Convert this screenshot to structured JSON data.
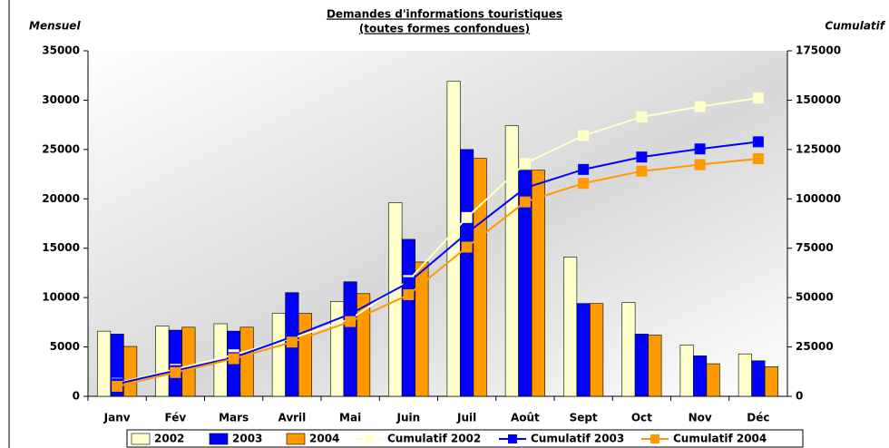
{
  "chart_data": {
    "type": "bar",
    "title": "Demandes d'informations touristiques",
    "subtitle": "(toutes formes confondues)",
    "y_label": "Mensuel",
    "y2_label": "Cumulatif",
    "categories": [
      "Janv",
      "Fév",
      "Mars",
      "Avril",
      "Mai",
      "Juin",
      "Juil",
      "Août",
      "Sept",
      "Oct",
      "Nov",
      "Déc"
    ],
    "series": [
      {
        "name": "2002",
        "type": "bar",
        "color": "#ffffcc",
        "values": [
          6600,
          7100,
          7350,
          8400,
          9600,
          19600,
          31900,
          27400,
          14100,
          9500,
          5200,
          4300
        ]
      },
      {
        "name": "2003",
        "type": "bar",
        "color": "#0000ff",
        "values": [
          6300,
          6700,
          6600,
          10500,
          11600,
          15900,
          25000,
          22900,
          9400,
          6300,
          4100,
          3600
        ]
      },
      {
        "name": "2004",
        "type": "bar",
        "color": "#ff9900",
        "values": [
          5050,
          7000,
          7000,
          8400,
          10400,
          13600,
          24100,
          22900,
          9400,
          6200,
          3300,
          3000
        ]
      },
      {
        "name": "Cumulatif 2002",
        "type": "line",
        "axis": "y2",
        "color": "#ffffcc",
        "values": [
          6600,
          13700,
          21050,
          29450,
          39050,
          58650,
          90550,
          117950,
          132050,
          141550,
          146750,
          151050
        ]
      },
      {
        "name": "Cumulatif 2003",
        "type": "line",
        "axis": "y2",
        "color": "#0000ff",
        "values": [
          6300,
          13000,
          19600,
          30100,
          41700,
          57600,
          82600,
          105500,
          114900,
          121200,
          125300,
          128900
        ]
      },
      {
        "name": "Cumulatif 2004",
        "type": "line",
        "axis": "y2",
        "color": "#ff9900",
        "values": [
          5050,
          12050,
          19050,
          27450,
          37850,
          51450,
          75550,
          98450,
          107850,
          114050,
          117350,
          120350
        ]
      }
    ],
    "ylim": [
      0,
      35000
    ],
    "yticks": [
      0,
      5000,
      10000,
      15000,
      20000,
      25000,
      30000,
      35000
    ],
    "y2lim": [
      0,
      175000
    ],
    "y2ticks": [
      0,
      25000,
      50000,
      75000,
      100000,
      125000,
      150000,
      175000
    ],
    "legend": "bottom"
  }
}
